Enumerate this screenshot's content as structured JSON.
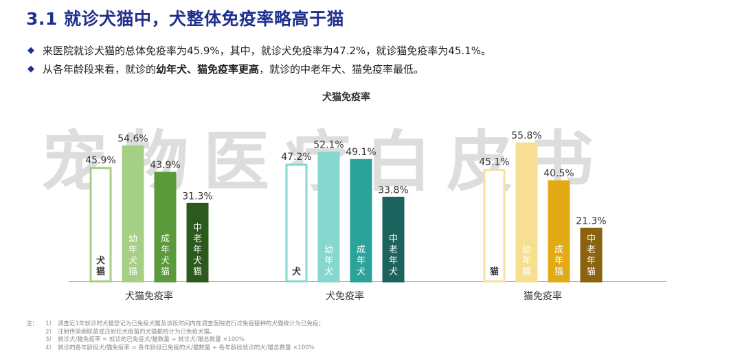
{
  "header": {
    "title": "3.1 就诊犬猫中，犬整体免疫率略高于猫"
  },
  "bullets": [
    {
      "parts": [
        {
          "text": "来医院就诊犬猫的总体免疫率为45.9%，其中，就诊犬免疫率为47.2%，就诊猫免疫率为45.1%。",
          "bold": false
        }
      ]
    },
    {
      "parts": [
        {
          "text": "从各年龄段来看，就诊的",
          "bold": false
        },
        {
          "text": "幼年犬、猫免疫率更高",
          "bold": true
        },
        {
          "text": "，就诊的中老年犬、猫免疫率最低。",
          "bold": false
        }
      ]
    }
  ],
  "watermark": "宠物医疗白皮书",
  "chart_data": {
    "type": "bar",
    "title": "犬猫免疫率",
    "unit": "%",
    "ylim": [
      0,
      70
    ],
    "grid": false,
    "legend": "none",
    "groups": [
      {
        "name": "犬猫免疫率",
        "bars": [
          {
            "label": "犬猫",
            "value": 45.9,
            "value_text": "45.9%",
            "fill": "#ffffff",
            "stroke": "#a6cf86",
            "text_color": "#333333",
            "text_bold": true
          },
          {
            "label": "幼年犬猫",
            "value": 54.6,
            "value_text": "54.6%",
            "fill": "#a6cf86",
            "stroke": "#a6cf86",
            "text_color": "#ffffff",
            "text_bold": false
          },
          {
            "label": "成年犬猫",
            "value": 43.9,
            "value_text": "43.9%",
            "fill": "#5a9a3a",
            "stroke": "#5a9a3a",
            "text_color": "#ffffff",
            "text_bold": false
          },
          {
            "label": "中老年犬猫",
            "value": 31.3,
            "value_text": "31.3%",
            "fill": "#2c5a1e",
            "stroke": "#2c5a1e",
            "text_color": "#ffffff",
            "text_bold": false
          }
        ]
      },
      {
        "name": "犬免疫率",
        "bars": [
          {
            "label": "犬",
            "value": 47.2,
            "value_text": "47.2%",
            "fill": "#ffffff",
            "stroke": "#86d8cf",
            "text_color": "#333333",
            "text_bold": true
          },
          {
            "label": "幼年犬",
            "value": 52.1,
            "value_text": "52.1%",
            "fill": "#86d8cf",
            "stroke": "#86d8cf",
            "text_color": "#ffffff",
            "text_bold": false
          },
          {
            "label": "成年犬",
            "value": 49.1,
            "value_text": "49.1%",
            "fill": "#2ba39a",
            "stroke": "#2ba39a",
            "text_color": "#ffffff",
            "text_bold": false
          },
          {
            "label": "中老年犬",
            "value": 33.8,
            "value_text": "33.8%",
            "fill": "#1c625d",
            "stroke": "#1c625d",
            "text_color": "#ffffff",
            "text_bold": false
          }
        ]
      },
      {
        "name": "猫免疫率",
        "bars": [
          {
            "label": "猫",
            "value": 45.1,
            "value_text": "45.1%",
            "fill": "#ffffff",
            "stroke": "#f7e19c",
            "text_color": "#333333",
            "text_bold": true
          },
          {
            "label": "幼年猫",
            "value": 55.8,
            "value_text": "55.8%",
            "fill": "#f7df92",
            "stroke": "#f7df92",
            "text_color": "#ffffff",
            "text_bold": false
          },
          {
            "label": "成年猫",
            "value": 40.5,
            "value_text": "40.5%",
            "fill": "#e2aa14",
            "stroke": "#e2aa14",
            "text_color": "#ffffff",
            "text_bold": false
          },
          {
            "label": "中老年猫",
            "value": 21.3,
            "value_text": "21.3%",
            "fill": "#8a6210",
            "stroke": "#8a6210",
            "text_color": "#ffffff",
            "text_bold": false
          }
        ]
      }
    ]
  },
  "notes": {
    "prefix": "注：",
    "lines": [
      {
        "idx": "1）",
        "text": "调查近1年就诊时犬猫登记为已免疫犬猫及该段时间内在调查医院进行过免疫接种的犬猫统计为已免疫；"
      },
      {
        "idx": "2）",
        "text": "注射传染病联苗或注射狂犬疫苗的犬猫都统计为已免疫犬猫。"
      },
      {
        "idx": "3）",
        "text": "就诊犬/猫免疫率 = 就诊的已免疫犬/猫数量 ÷ 就诊犬/猫总数量 ×100%"
      },
      {
        "idx": "4）",
        "text": "就诊的各年龄段犬/猫免疫率 = 各年龄段已免疫的犬/猫数量 ÷ 各年龄段就诊的犬/猫总数量 ×100%"
      }
    ]
  }
}
